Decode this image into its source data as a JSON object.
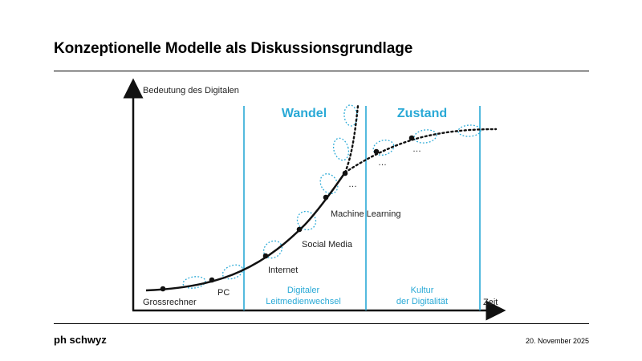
{
  "title": "Konzeptionelle Modelle als Diskussionsgrundlage",
  "footer": {
    "logo": "ph schwyz",
    "date": "20. November 2025"
  },
  "diagram": {
    "y_axis_label": "Bedeutung des Digitalen",
    "x_axis_label": "Zeit",
    "headings": {
      "wandel": "Wandel",
      "zustand": "Zustand"
    },
    "milestones": [
      "Grossrechner",
      "PC",
      "Internet",
      "Social Media",
      "Machine Learning",
      "…",
      "…",
      "…"
    ],
    "phases": {
      "phase1_line1": "Digitaler",
      "phase1_line2": "Leitmedienwechsel",
      "phase2_line1": "Kultur",
      "phase2_line2": "der Digitalität"
    },
    "colors": {
      "accent": "#29a9d6",
      "curve": "#111111"
    }
  }
}
